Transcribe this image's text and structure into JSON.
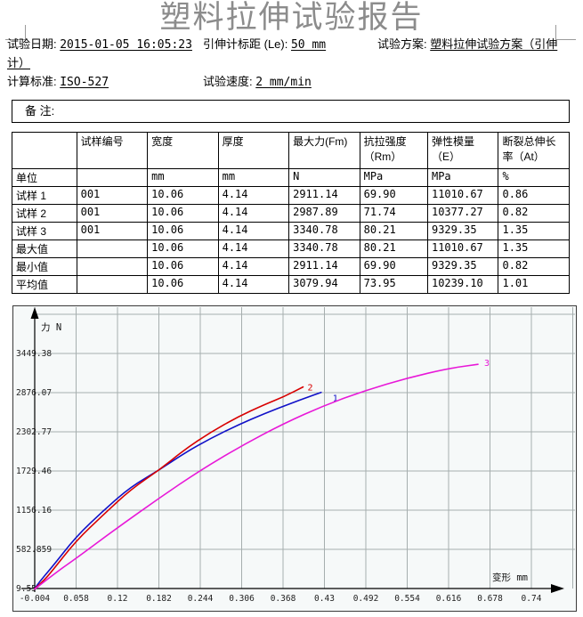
{
  "page": {
    "title": "塑料拉伸试验报告"
  },
  "header": {
    "fields": {
      "test_date": {
        "label": "试验日期: ",
        "value": "2015-01-05 16:05:23"
      },
      "gauge": {
        "label": "引伸计标距 (Le): ",
        "value": "50 mm"
      },
      "scheme": {
        "label": "试验方案: ",
        "value_line1": "塑料拉伸试验方案（引伸",
        "value_line2": "计）"
      },
      "standard": {
        "label": "计算标准: ",
        "value": "ISO-527"
      },
      "speed": {
        "label": "试验速度: ",
        "value": "2 mm/min"
      }
    }
  },
  "remarks": {
    "label": "备  注:"
  },
  "table": {
    "columns": [
      {
        "line1": "",
        "line2": ""
      },
      {
        "line1": "试样编号",
        "line2": ""
      },
      {
        "line1": "宽度",
        "line2": ""
      },
      {
        "line1": "厚度",
        "line2": ""
      },
      {
        "line1": "最大力(Fm)",
        "line2": ""
      },
      {
        "line1": "抗拉强度",
        "line2": "（Rm）"
      },
      {
        "line1": "弹性模量",
        "line2": "（E）"
      },
      {
        "line1": "断裂总伸长",
        "line2": "率（At）"
      }
    ],
    "rows": [
      [
        "单位",
        "",
        "mm",
        "mm",
        "N",
        "MPa",
        "MPa",
        "%"
      ],
      [
        "试样 1",
        "001",
        "10.06",
        "4.14",
        "2911.14",
        "69.90",
        "11010.67",
        "0.86"
      ],
      [
        "试样 2",
        "001",
        "10.06",
        "4.14",
        "2987.89",
        "71.74",
        "10377.27",
        "0.82"
      ],
      [
        "试样 3",
        "001",
        "10.06",
        "4.14",
        "3340.78",
        "80.21",
        "9329.35",
        "1.35"
      ],
      [
        "最大值",
        "",
        "10.06",
        "4.14",
        "3340.78",
        "80.21",
        "11010.67",
        "1.35"
      ],
      [
        "最小值",
        "",
        "10.06",
        "4.14",
        "2911.14",
        "69.90",
        "9329.35",
        "0.82"
      ],
      [
        "平均值",
        "",
        "10.06",
        "4.14",
        "3079.94",
        "73.95",
        "10239.10",
        "1.01"
      ]
    ]
  },
  "chart_data": {
    "type": "line",
    "title": "",
    "xlabel": "变形 mm",
    "ylabel": "力 N",
    "grid": true,
    "xlim": [
      -0.004,
      0.802
    ],
    "ylim": [
      9.55,
      4022.7
    ],
    "x_ticks": [
      "-0.004",
      "0.058",
      "0.12",
      "0.182",
      "0.244",
      "0.306",
      "0.368",
      "0.43",
      "0.492",
      "0.554",
      "0.616",
      "0.678",
      "0.74"
    ],
    "y_ticks": [
      "9.55",
      "582.859",
      "1156.16",
      "1729.46",
      "2302.77",
      "2876.07",
      "3449.38"
    ],
    "x_tick_step": 0.062,
    "y_tick_step": 573.31,
    "axis_color": "#000000",
    "grid_color": "#a6aeae",
    "series": [
      {
        "name": "1",
        "color": "#1010c8",
        "points": [
          [
            -0.004,
            10
          ],
          [
            0.004,
            120
          ],
          [
            0.02,
            300
          ],
          [
            0.058,
            770
          ],
          [
            0.1,
            1160
          ],
          [
            0.14,
            1500
          ],
          [
            0.182,
            1740
          ],
          [
            0.22,
            1990
          ],
          [
            0.26,
            2210
          ],
          [
            0.3,
            2400
          ],
          [
            0.34,
            2570
          ],
          [
            0.38,
            2720
          ],
          [
            0.405,
            2810
          ],
          [
            0.425,
            2880
          ]
        ]
      },
      {
        "name": "2",
        "color": "#d80000",
        "points": [
          [
            -0.004,
            5
          ],
          [
            0.006,
            90
          ],
          [
            0.02,
            240
          ],
          [
            0.058,
            710
          ],
          [
            0.1,
            1100
          ],
          [
            0.14,
            1460
          ],
          [
            0.182,
            1740
          ],
          [
            0.22,
            2040
          ],
          [
            0.26,
            2300
          ],
          [
            0.3,
            2520
          ],
          [
            0.34,
            2700
          ],
          [
            0.37,
            2820
          ],
          [
            0.398,
            2960
          ]
        ]
      },
      {
        "name": "3",
        "color": "#e818d8",
        "points": [
          [
            -0.004,
            0
          ],
          [
            0.03,
            260
          ],
          [
            0.058,
            450
          ],
          [
            0.12,
            900
          ],
          [
            0.182,
            1330
          ],
          [
            0.244,
            1740
          ],
          [
            0.306,
            2100
          ],
          [
            0.368,
            2420
          ],
          [
            0.43,
            2690
          ],
          [
            0.492,
            2910
          ],
          [
            0.554,
            3090
          ],
          [
            0.616,
            3230
          ],
          [
            0.66,
            3290
          ]
        ]
      }
    ]
  }
}
